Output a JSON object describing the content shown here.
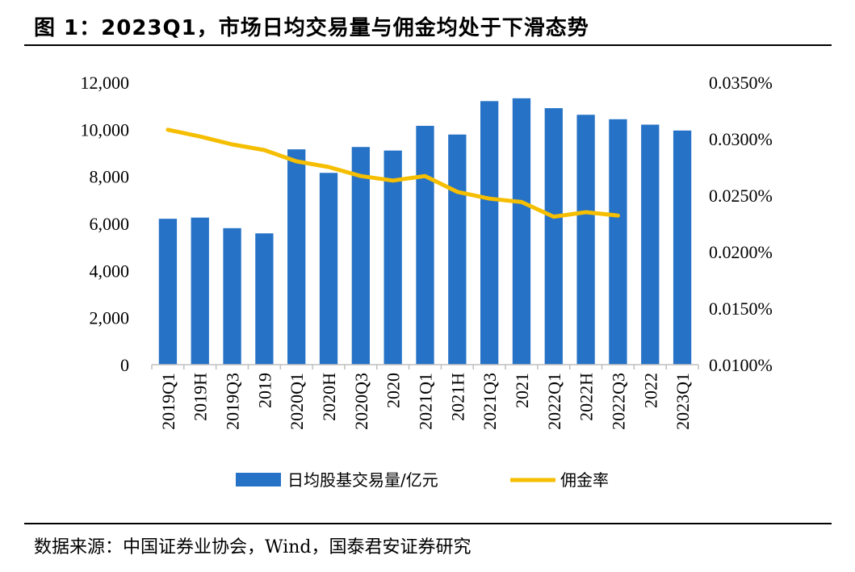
{
  "title": "图 1：2023Q1，市场日均交易量与佣金均处于下滑态势",
  "source": "数据来源：中国证券业协会，Wind，国泰君安证券研究",
  "colors": {
    "bar": "#2672C6",
    "line": "#F5BE00"
  },
  "chart_data": {
    "type": "bar+line",
    "categories": [
      "2019Q1",
      "2019H",
      "2019Q3",
      "2019",
      "2020Q1",
      "2020H",
      "2020Q3",
      "2020",
      "2021Q1",
      "2021H",
      "2021Q3",
      "2021",
      "2022Q1",
      "2022H",
      "2022Q3",
      "2022",
      "2023Q1"
    ],
    "series": [
      {
        "name": "日均股基交易量/亿元",
        "type": "bar",
        "axis": "left",
        "values": [
          6200,
          6250,
          5800,
          5580,
          9150,
          8150,
          9250,
          9100,
          10150,
          9780,
          11200,
          11320,
          10900,
          10620,
          10430,
          10200,
          9950
        ]
      },
      {
        "name": "佣金率",
        "type": "line",
        "axis": "right",
        "values": [
          0.0308,
          0.0302,
          0.0295,
          0.029,
          0.028,
          0.0275,
          0.0267,
          0.0263,
          0.0267,
          0.0253,
          0.0247,
          0.0244,
          0.0231,
          0.0235,
          0.0232,
          null,
          null
        ]
      }
    ],
    "y_left": {
      "min": 0,
      "max": 12000,
      "ticks": [
        "0",
        "2,000",
        "4,000",
        "6,000",
        "8,000",
        "10,000",
        "12,000"
      ]
    },
    "y_right": {
      "min": 0.01,
      "max": 0.035,
      "ticks": [
        "0.0100%",
        "0.0150%",
        "0.0200%",
        "0.0250%",
        "0.0300%",
        "0.0350%"
      ]
    },
    "grid": false,
    "legend_position": "bottom"
  }
}
